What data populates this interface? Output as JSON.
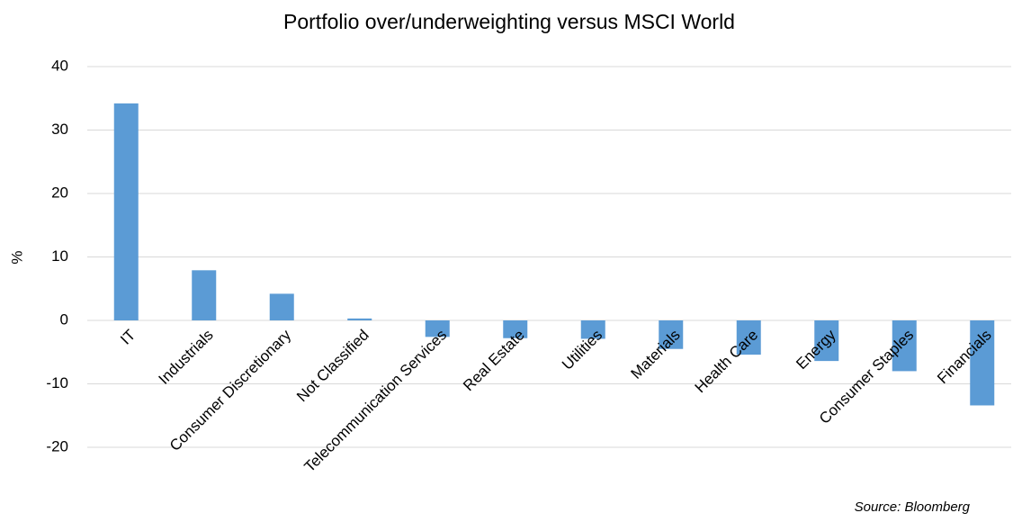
{
  "chart_data": {
    "type": "bar",
    "title": "Portfolio over/underweighting versus MSCI World",
    "y_label": "%",
    "source": "Source: Bloomberg",
    "categories": [
      "IT",
      "Industrials",
      "Consumer Discretionary",
      "Not Classified",
      "Telecommunication Services",
      "Real Estate",
      "Utilities",
      "Materials",
      "Health Care",
      "Energy",
      "Consumer Staples",
      "Financials"
    ],
    "values": [
      34.2,
      7.9,
      4.2,
      0.3,
      -2.6,
      -2.8,
      -2.9,
      -4.5,
      -5.4,
      -6.4,
      -8.0,
      -13.4
    ],
    "color": "#5b9bd5",
    "ylim": [
      -20,
      40
    ],
    "yticks": [
      -20,
      -10,
      0,
      10,
      20,
      30,
      40
    ],
    "grid": true
  }
}
